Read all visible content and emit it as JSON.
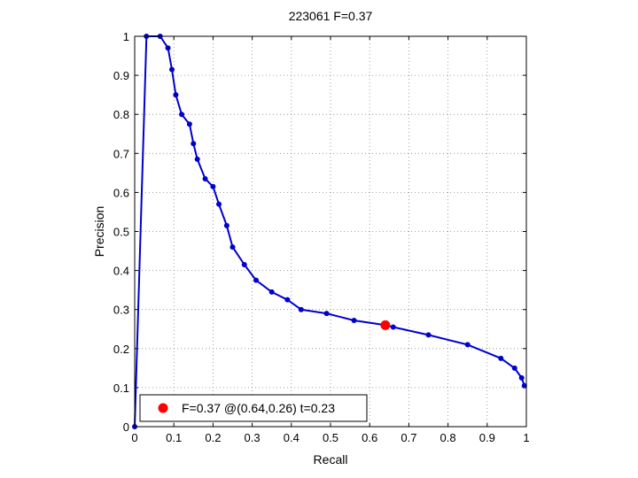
{
  "chart_data": {
    "type": "line",
    "title": "223061 F=0.37",
    "xlabel": "Recall",
    "ylabel": "Precision",
    "xlim": [
      0,
      1
    ],
    "ylim": [
      0,
      1
    ],
    "grid": true,
    "x_ticks": [
      "0",
      "0.1",
      "0.2",
      "0.3",
      "0.4",
      "0.5",
      "0.6",
      "0.7",
      "0.8",
      "0.9",
      "1"
    ],
    "y_ticks": [
      "0",
      "0.1",
      "0.2",
      "0.3",
      "0.4",
      "0.5",
      "0.6",
      "0.7",
      "0.8",
      "0.9",
      "1"
    ],
    "series": [
      {
        "color": "#0000cc",
        "points": [
          [
            0.0,
            0.0
          ],
          [
            0.03,
            1.0
          ],
          [
            0.065,
            1.0
          ],
          [
            0.085,
            0.97
          ],
          [
            0.095,
            0.915
          ],
          [
            0.105,
            0.85
          ],
          [
            0.12,
            0.8
          ],
          [
            0.14,
            0.775
          ],
          [
            0.15,
            0.725
          ],
          [
            0.16,
            0.685
          ],
          [
            0.18,
            0.635
          ],
          [
            0.2,
            0.615
          ],
          [
            0.215,
            0.57
          ],
          [
            0.235,
            0.515
          ],
          [
            0.25,
            0.46
          ],
          [
            0.28,
            0.415
          ],
          [
            0.31,
            0.375
          ],
          [
            0.35,
            0.345
          ],
          [
            0.39,
            0.325
          ],
          [
            0.425,
            0.3
          ],
          [
            0.49,
            0.29
          ],
          [
            0.56,
            0.272
          ],
          [
            0.64,
            0.26
          ],
          [
            0.66,
            0.255
          ],
          [
            0.75,
            0.235
          ],
          [
            0.85,
            0.21
          ],
          [
            0.935,
            0.175
          ],
          [
            0.97,
            0.15
          ],
          [
            0.988,
            0.125
          ],
          [
            0.995,
            0.105
          ]
        ]
      }
    ],
    "best_point": {
      "x": 0.64,
      "y": 0.26,
      "color": "#ff0000"
    },
    "legend": {
      "position": "bottom-left",
      "label": "F=0.37 @(0.64,0.26) t=0.23"
    }
  }
}
